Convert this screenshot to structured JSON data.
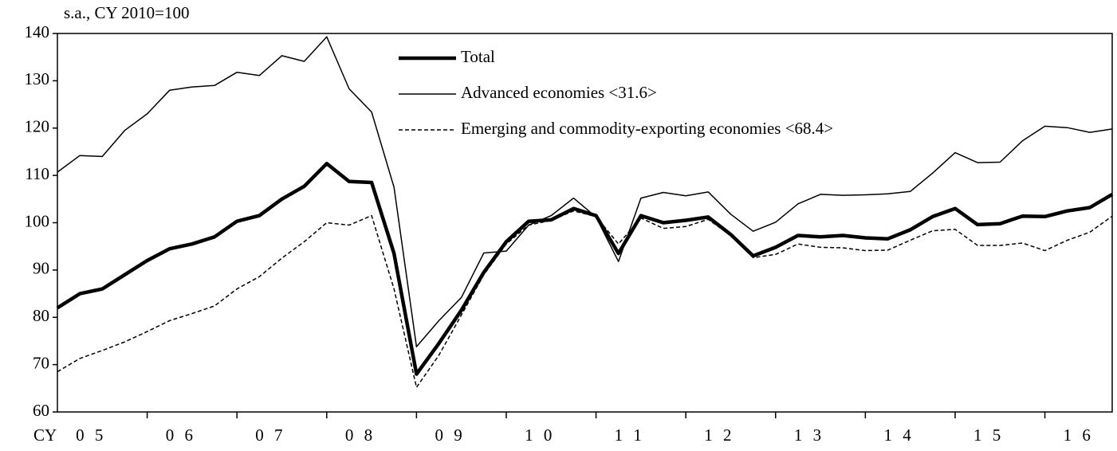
{
  "chart_data": {
    "type": "line",
    "title": "s.a., CY 2010=100",
    "x_axis_prefix": "CY",
    "categories": [
      null,
      null,
      "0 5",
      null,
      null,
      null,
      "0 6",
      null,
      null,
      null,
      "0 7",
      null,
      null,
      null,
      "0 8",
      null,
      null,
      null,
      "0 9",
      null,
      null,
      null,
      "1 0",
      null,
      null,
      null,
      "1 1",
      null,
      null,
      null,
      "1 2",
      null,
      null,
      null,
      "1 3",
      null,
      null,
      null,
      "1 4",
      null,
      null,
      null,
      "1 5",
      null,
      null,
      null,
      "1 6",
      null
    ],
    "series": [
      {
        "name": "Total",
        "color": "#000000",
        "width": 4.5,
        "dashed": false,
        "values": [
          82,
          85,
          86,
          89,
          92,
          94.5,
          95.5,
          97,
          100.3,
          101.5,
          105,
          107.7,
          112.5,
          108.7,
          108.5,
          93.5,
          68,
          74.5,
          81.5,
          89.5,
          96,
          100.3,
          100.6,
          103,
          101.5,
          93.5,
          101.5,
          100,
          100.5,
          101.2,
          97.5,
          93,
          94.8,
          97.3,
          97,
          97.3,
          96.8,
          96.6,
          98.5,
          101.3,
          103,
          99.6,
          99.8,
          101.4,
          101.3,
          102.5,
          103.2,
          106
        ]
      },
      {
        "name": "Advanced economies <31.6>",
        "color": "#000000",
        "width": 1.5,
        "dashed": false,
        "values": [
          110.7,
          114.2,
          114,
          119.5,
          123,
          128,
          128.7,
          129,
          131.8,
          131.1,
          135.3,
          134.1,
          139.3,
          128.3,
          123.4,
          107.5,
          73.8,
          79.3,
          84.2,
          93.6,
          94,
          99.5,
          101.5,
          105.2,
          101.2,
          91.8,
          105.2,
          106.4,
          105.7,
          106.5,
          101.8,
          98.2,
          100.1,
          104,
          106,
          105.8,
          105.9,
          106.1,
          106.6,
          110.5,
          114.8,
          112.7,
          112.8,
          117.3,
          120.4,
          120.1,
          119.1,
          119.8
        ]
      },
      {
        "name": "Emerging and commodity-exporting economies <68.4>",
        "color": "#000000",
        "width": 1.5,
        "dashed": true,
        "values": [
          68.5,
          71.3,
          73,
          74.8,
          77,
          79.3,
          80.8,
          82.4,
          86,
          88.6,
          92.5,
          96,
          100,
          99.5,
          101.5,
          86,
          65.2,
          72,
          80.5,
          89,
          95.5,
          99.5,
          100.5,
          102.5,
          101.3,
          95.5,
          101,
          98.8,
          99.2,
          100.7,
          97.3,
          92.6,
          93.3,
          95.5,
          94.8,
          94.7,
          94.1,
          94.2,
          96.3,
          98.3,
          98.6,
          95.2,
          95.2,
          95.7,
          94.1,
          96.3,
          98,
          101.4
        ]
      }
    ],
    "ylim": [
      60,
      140
    ],
    "yticks": [
      60,
      70,
      80,
      90,
      100,
      110,
      120,
      130,
      140
    ],
    "grid": false,
    "legend": "top"
  }
}
